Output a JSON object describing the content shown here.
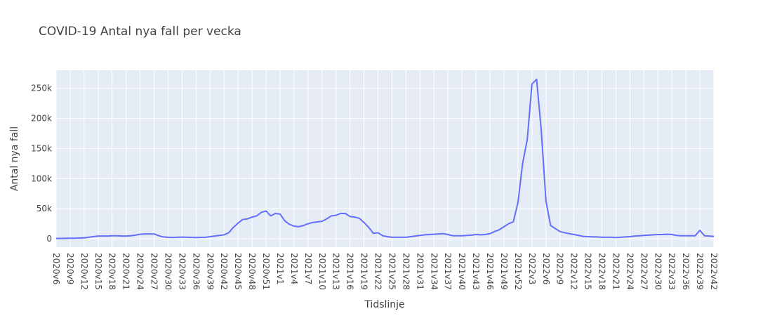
{
  "chart_data": {
    "type": "line",
    "title": "COVID-19 Antal nya fall per vecka",
    "x_label": "Tidslinje",
    "y_label": "Antal nya fall",
    "categories": [
      "2020v6",
      null,
      null,
      "2020v9",
      null,
      null,
      "2020v12",
      null,
      null,
      "2020v15",
      null,
      null,
      "2020v18",
      null,
      null,
      "2020v21",
      null,
      null,
      "2020v24",
      null,
      null,
      "2020v27",
      null,
      null,
      "2020v30",
      null,
      null,
      "2020v33",
      null,
      null,
      "2020v36",
      null,
      null,
      "2020v39",
      null,
      null,
      "2020v42",
      null,
      null,
      "2020v45",
      null,
      null,
      "2020v48",
      null,
      null,
      "2020v51",
      null,
      null,
      "2021v1",
      null,
      null,
      "2021v4",
      null,
      null,
      "2021v7",
      null,
      null,
      "2021v10",
      null,
      null,
      "2021v13",
      null,
      null,
      "2021v16",
      null,
      null,
      "2021v19",
      null,
      null,
      "2021v22",
      null,
      null,
      "2021v25",
      null,
      null,
      "2021v28",
      null,
      null,
      "2021v31",
      null,
      null,
      "2021v34",
      null,
      null,
      "2021v37",
      null,
      null,
      "2021v40",
      null,
      null,
      "2021v43",
      null,
      null,
      "2021v46",
      null,
      null,
      "2021v49",
      null,
      null,
      "2021v52",
      null,
      null,
      "2022v3",
      null,
      null,
      "2022v6",
      null,
      null,
      "2022v9",
      null,
      null,
      "2022v12",
      null,
      null,
      "2022v15",
      null,
      null,
      "2022v18",
      null,
      null,
      "2022v21",
      null,
      null,
      "2022v24",
      null,
      null,
      "2022v27",
      null,
      null,
      "2022v30",
      null,
      null,
      "2022v33",
      null,
      null,
      "2022v36",
      null,
      null,
      "2022v39",
      null,
      null,
      "2022v42"
    ],
    "series": [
      {
        "color": "#636efa",
        "values": [
          500,
          600,
          700,
          800,
          900,
          1100,
          1400,
          2500,
          3500,
          4500,
          4500,
          4500,
          5000,
          5000,
          4500,
          4500,
          5000,
          6000,
          7500,
          8000,
          8000,
          8000,
          5000,
          3000,
          2500,
          2200,
          2500,
          2800,
          2500,
          2300,
          2000,
          2300,
          2500,
          3500,
          4500,
          5500,
          6500,
          10000,
          19000,
          26000,
          32000,
          33000,
          36000,
          38000,
          44000,
          46000,
          38000,
          42000,
          41000,
          30000,
          24000,
          21000,
          20000,
          22000,
          25000,
          27000,
          28000,
          29000,
          33000,
          38000,
          39000,
          42000,
          42000,
          37000,
          36000,
          34000,
          27000,
          19000,
          9000,
          10000,
          5000,
          3500,
          2500,
          2500,
          2500,
          2500,
          3500,
          4500,
          5500,
          6500,
          7000,
          7500,
          8000,
          8500,
          7000,
          5000,
          5000,
          5000,
          5500,
          6000,
          7000,
          6500,
          7000,
          8500,
          12000,
          15000,
          20000,
          25000,
          28000,
          60000,
          125000,
          165000,
          257000,
          265000,
          180000,
          63000,
          22000,
          17000,
          12000,
          10000,
          8500,
          7000,
          5500,
          4000,
          3500,
          3000,
          3000,
          2500,
          2500,
          2500,
          2000,
          2500,
          3000,
          3500,
          4500,
          5000,
          5500,
          6000,
          6500,
          7000,
          7000,
          7500,
          7000,
          5500,
          5000,
          5000,
          5000,
          5000,
          14000,
          5000,
          4500,
          4000
        ]
      }
    ],
    "ylim": [
      -14000,
      280000
    ],
    "yticks": [
      0,
      {
        "value": 50000,
        "label": "50k"
      },
      {
        "value": 100000,
        "label": "100k"
      },
      {
        "value": 150000,
        "label": "150k"
      },
      {
        "value": 200000,
        "label": "200k"
      },
      {
        "value": 250000,
        "label": "250k"
      }
    ],
    "grid": true
  }
}
